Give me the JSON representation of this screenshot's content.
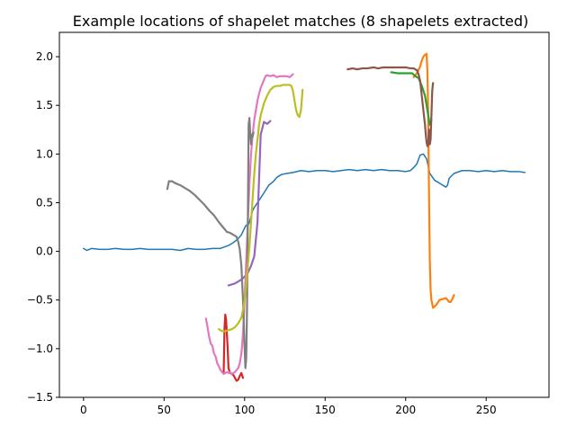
{
  "chart_data": {
    "type": "line",
    "title": "Example locations of shapelet matches (8 shapelets extracted)",
    "xlabel": "",
    "ylabel": "",
    "xlim": [
      -15,
      289
    ],
    "ylim": [
      -1.5,
      2.25
    ],
    "x_ticks": [
      0,
      50,
      100,
      150,
      200,
      250
    ],
    "x_tick_labels": [
      "0",
      "50",
      "100",
      "150",
      "200",
      "250"
    ],
    "y_ticks": [
      -1.5,
      -1.0,
      -0.5,
      0.0,
      0.5,
      1.0,
      1.5,
      2.0
    ],
    "y_tick_labels": [
      "−1.5",
      "−1.0",
      "−0.5",
      "0.0",
      "0.5",
      "1.0",
      "1.5",
      "2.0"
    ],
    "grid": false,
    "series": [
      {
        "color": "#1f77b4",
        "x": [
          0,
          2,
          5,
          10,
          15,
          20,
          25,
          30,
          35,
          40,
          45,
          50,
          55,
          60,
          65,
          70,
          75,
          80,
          85,
          90,
          93,
          96,
          98,
          100,
          101,
          102,
          103,
          104,
          105,
          106,
          108,
          110,
          112,
          115,
          118,
          120,
          123,
          126,
          130,
          135,
          140,
          145,
          150,
          155,
          160,
          165,
          170,
          175,
          180,
          185,
          190,
          195,
          200,
          203,
          205,
          207,
          209,
          211,
          213,
          215,
          218,
          222,
          224,
          225,
          226,
          227,
          230,
          235,
          240,
          245,
          250,
          255,
          260,
          265,
          270,
          274
        ],
        "y": [
          0.03,
          0.01,
          0.03,
          0.02,
          0.02,
          0.03,
          0.02,
          0.02,
          0.03,
          0.02,
          0.02,
          0.02,
          0.02,
          0.01,
          0.03,
          0.02,
          0.02,
          0.03,
          0.03,
          0.06,
          0.09,
          0.13,
          0.17,
          0.24,
          0.27,
          0.26,
          0.3,
          0.36,
          0.42,
          0.45,
          0.5,
          0.55,
          0.6,
          0.68,
          0.72,
          0.76,
          0.79,
          0.8,
          0.81,
          0.83,
          0.82,
          0.83,
          0.83,
          0.82,
          0.83,
          0.84,
          0.83,
          0.84,
          0.83,
          0.84,
          0.83,
          0.83,
          0.82,
          0.83,
          0.86,
          0.9,
          0.99,
          1.0,
          0.95,
          0.8,
          0.73,
          0.69,
          0.67,
          0.66,
          0.68,
          0.75,
          0.8,
          0.83,
          0.83,
          0.82,
          0.83,
          0.82,
          0.83,
          0.82,
          0.82,
          0.81
        ]
      },
      {
        "color": "#ff7f0e",
        "x": [
          205,
          207,
          209,
          210,
          211,
          212,
          213,
          213.5,
          214,
          214.5,
          215,
          215.5,
          216,
          217,
          219,
          221,
          223,
          225,
          226,
          227,
          228,
          229,
          230
        ],
        "y": [
          1.79,
          1.83,
          1.9,
          1.96,
          2.0,
          2.02,
          2.03,
          1.85,
          1.4,
          0.6,
          -0.1,
          -0.4,
          -0.5,
          -0.58,
          -0.55,
          -0.5,
          -0.49,
          -0.48,
          -0.5,
          -0.52,
          -0.52,
          -0.49,
          -0.45
        ]
      },
      {
        "color": "#2ca02c",
        "x": [
          191,
          195,
          200,
          204,
          206,
          208,
          210,
          212,
          213,
          214,
          215,
          216
        ],
        "y": [
          1.84,
          1.83,
          1.83,
          1.83,
          1.8,
          1.78,
          1.7,
          1.6,
          1.5,
          1.4,
          1.3,
          1.35
        ]
      },
      {
        "color": "#d62728",
        "x": [
          87,
          87.5,
          88,
          88.5,
          89,
          89.5,
          90,
          91,
          92,
          93,
          94,
          95,
          96,
          97,
          98,
          99
        ],
        "y": [
          -1.25,
          -0.8,
          -0.65,
          -0.7,
          -0.85,
          -1.0,
          -1.2,
          -1.25,
          -1.26,
          -1.27,
          -1.3,
          -1.33,
          -1.32,
          -1.28,
          -1.25,
          -1.3
        ]
      },
      {
        "color": "#9467bd",
        "x": [
          90,
          92,
          94,
          96,
          98,
          100,
          102,
          104,
          106,
          108,
          110,
          112,
          114,
          116
        ],
        "y": [
          -0.35,
          -0.34,
          -0.33,
          -0.31,
          -0.29,
          -0.26,
          -0.22,
          -0.15,
          -0.05,
          0.3,
          1.2,
          1.33,
          1.31,
          1.34
        ]
      },
      {
        "color": "#8c564b",
        "x": [
          164,
          167,
          170,
          173,
          176,
          180,
          183,
          186,
          190,
          193,
          196,
          200,
          203,
          205,
          207,
          208,
          209,
          210,
          211,
          212,
          212.5,
          213,
          213.5,
          214,
          214.5,
          215,
          215.5,
          216,
          216.5,
          217
        ],
        "y": [
          1.87,
          1.88,
          1.87,
          1.88,
          1.88,
          1.89,
          1.88,
          1.89,
          1.89,
          1.89,
          1.89,
          1.89,
          1.88,
          1.88,
          1.86,
          1.82,
          1.75,
          1.6,
          1.45,
          1.3,
          1.2,
          1.12,
          1.08,
          1.1,
          1.25,
          1.1,
          1.15,
          1.4,
          1.65,
          1.73
        ]
      },
      {
        "color": "#e377c2",
        "x": [
          76,
          77,
          78,
          79,
          80,
          81,
          82,
          83,
          84,
          85,
          86,
          87,
          88,
          89,
          90,
          91,
          92,
          93,
          94,
          95,
          96,
          97,
          98,
          99,
          100,
          101,
          102,
          103,
          104,
          105,
          106,
          107,
          108,
          109,
          110,
          111,
          112,
          113,
          114,
          116,
          118,
          120,
          122,
          124,
          126,
          128,
          130
        ],
        "y": [
          -0.69,
          -0.78,
          -0.88,
          -0.95,
          -0.97,
          -1.05,
          -1.08,
          -1.15,
          -1.18,
          -1.22,
          -1.24,
          -1.26,
          -1.25,
          -1.24,
          -1.25,
          -1.24,
          -1.26,
          -1.25,
          -1.24,
          -1.22,
          -1.2,
          -1.15,
          -1.05,
          -0.85,
          -0.5,
          -0.1,
          0.3,
          0.7,
          1.0,
          1.2,
          1.35,
          1.45,
          1.55,
          1.62,
          1.68,
          1.72,
          1.76,
          1.8,
          1.81,
          1.8,
          1.81,
          1.79,
          1.8,
          1.8,
          1.8,
          1.79,
          1.82
        ]
      },
      {
        "color": "#7f7f7f",
        "x": [
          52,
          53,
          55,
          57,
          60,
          63,
          66,
          69,
          72,
          75,
          78,
          81,
          84,
          87,
          89,
          91,
          93,
          95,
          96,
          97,
          98,
          99,
          100,
          100.5,
          101,
          101.5,
          102,
          102.5,
          103,
          103.5,
          104,
          104.5,
          105,
          105.5
        ],
        "y": [
          0.64,
          0.72,
          0.72,
          0.7,
          0.68,
          0.65,
          0.62,
          0.58,
          0.53,
          0.48,
          0.42,
          0.37,
          0.3,
          0.24,
          0.2,
          0.19,
          0.17,
          0.15,
          0.1,
          0.02,
          -0.15,
          -0.5,
          -1.0,
          -1.2,
          -1.1,
          -0.6,
          0.3,
          1.3,
          1.37,
          1.2,
          1.1,
          1.2,
          1.18,
          1.22
        ]
      },
      {
        "color": "#bcbd22",
        "x": [
          84,
          86,
          88,
          90,
          92,
          94,
          96,
          98,
          99,
          100,
          101,
          102,
          103,
          104,
          105,
          106,
          107,
          108,
          109,
          110,
          112,
          114,
          116,
          118,
          120,
          122,
          124,
          126,
          128,
          129,
          130,
          131,
          132,
          133,
          134,
          135,
          136
        ],
        "y": [
          -0.8,
          -0.82,
          -0.82,
          -0.81,
          -0.8,
          -0.78,
          -0.74,
          -0.68,
          -0.6,
          -0.5,
          -0.35,
          -0.15,
          0.05,
          0.3,
          0.55,
          0.8,
          1.0,
          1.15,
          1.3,
          1.4,
          1.52,
          1.6,
          1.66,
          1.69,
          1.7,
          1.7,
          1.71,
          1.71,
          1.71,
          1.7,
          1.65,
          1.55,
          1.45,
          1.4,
          1.38,
          1.45,
          1.66
        ]
      }
    ]
  }
}
